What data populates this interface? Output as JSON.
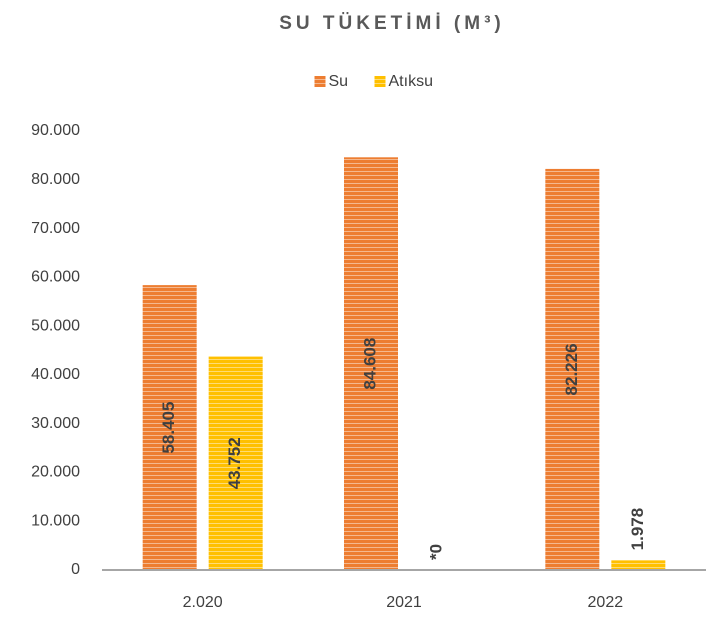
{
  "chart_data": {
    "type": "bar",
    "title": "SU TÜKETİMİ (M³)",
    "categories": [
      "2.020",
      "2021",
      "2022"
    ],
    "series": [
      {
        "name": "Su",
        "color": "#ED7D31",
        "values": [
          58405,
          84608,
          82226
        ],
        "value_labels": [
          "58.405",
          "84.608",
          "82.226"
        ]
      },
      {
        "name": "Atıksu",
        "color": "#FFC000",
        "values": [
          43752,
          0,
          1978
        ],
        "value_labels": [
          "43.752",
          "*0",
          "1.978"
        ]
      }
    ],
    "ylim": [
      0,
      90000
    ],
    "yticks": [
      0,
      {
        "value": 10000,
        "label": "10.000"
      },
      {
        "value": 20000,
        "label": "20.000"
      },
      {
        "value": 30000,
        "label": "30.000"
      },
      {
        "value": 40000,
        "label": "40.000"
      },
      {
        "value": 50000,
        "label": "50.000"
      },
      {
        "value": 60000,
        "label": "60.000"
      },
      {
        "value": 70000,
        "label": "70.000"
      },
      {
        "value": 80000,
        "label": "80.000"
      },
      {
        "value": 90000,
        "label": "90.000"
      }
    ],
    "grid": false,
    "legend": "top"
  }
}
